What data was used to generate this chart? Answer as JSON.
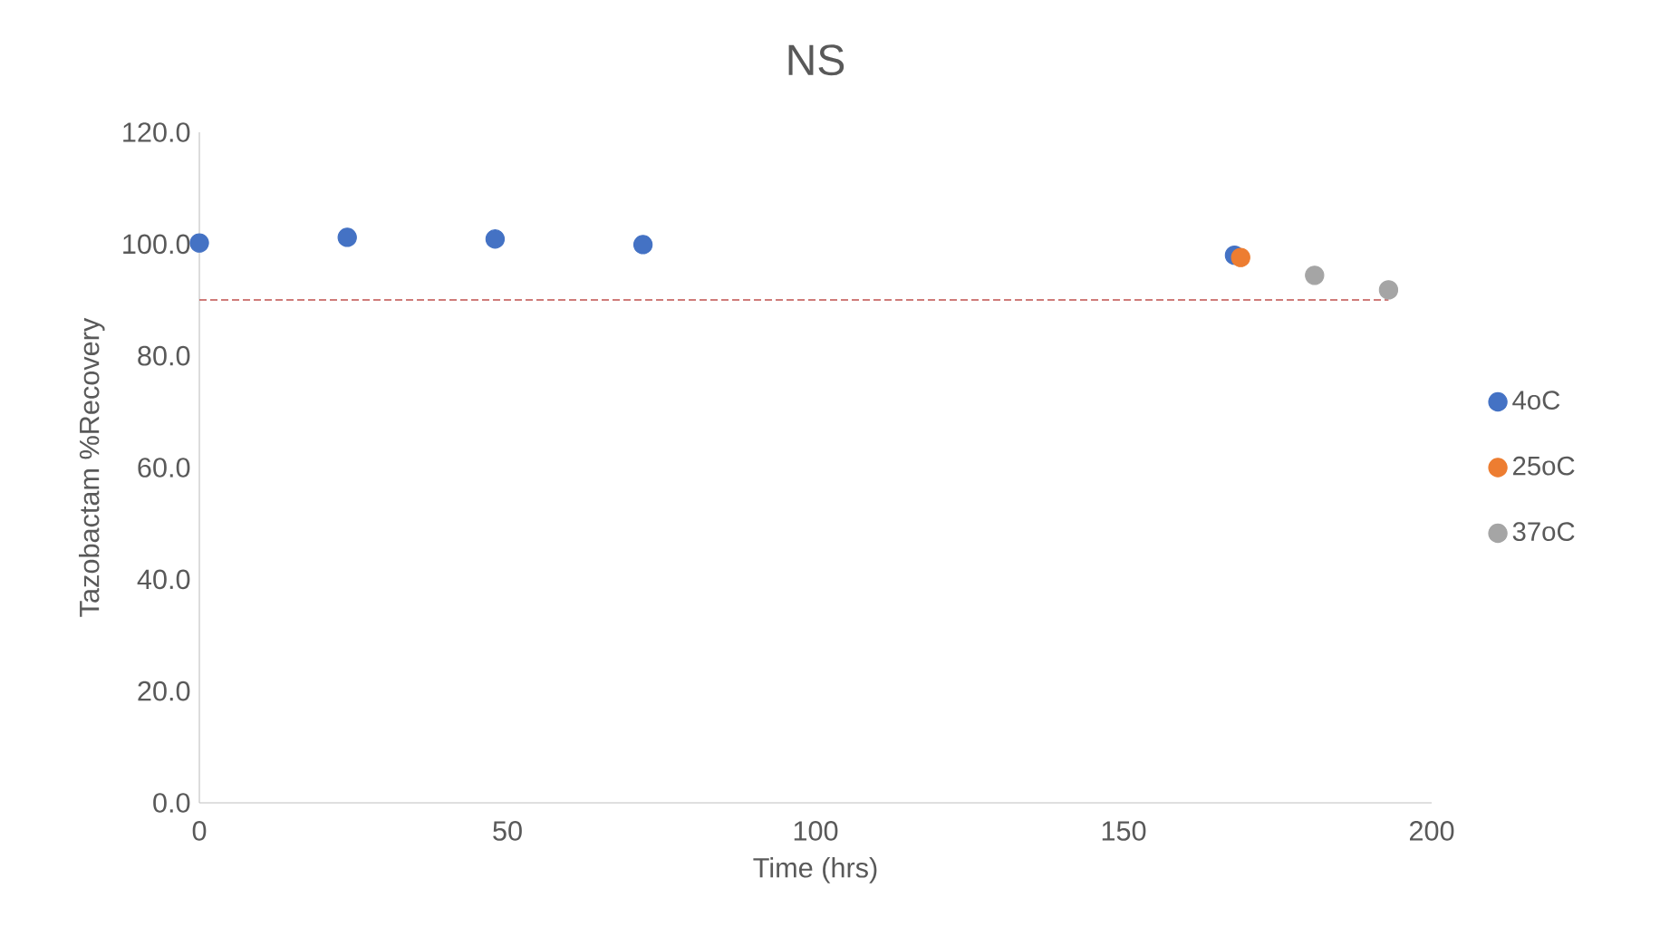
{
  "chart_data": {
    "type": "scatter",
    "title": "NS",
    "xlabel": "Time (hrs)",
    "ylabel": "Tazobactam %Recovery",
    "series": [
      {
        "name": "4oC",
        "color": "#4472c4",
        "x": [
          0,
          24,
          48,
          72,
          168
        ],
        "values": [
          100.2,
          101.2,
          100.9,
          99.9,
          98.0
        ]
      },
      {
        "name": "25oC",
        "color": "#ed7d31",
        "x": [
          169
        ],
        "values": [
          97.6
        ]
      },
      {
        "name": "37oC",
        "color": "#a5a5a5",
        "x": [
          181,
          193
        ],
        "values": [
          94.4,
          91.8
        ]
      }
    ],
    "xlim": [
      0,
      200
    ],
    "xticks": [
      0,
      50,
      100,
      150,
      200
    ],
    "ylim": [
      0,
      120
    ],
    "yticks": [
      {
        "value": 0,
        "label": "0.0"
      },
      {
        "value": 20,
        "label": "20.0"
      },
      {
        "value": 40,
        "label": "40.0"
      },
      {
        "value": 60,
        "label": "60.0"
      },
      {
        "value": 80,
        "label": "80.0"
      },
      {
        "value": 100,
        "label": "100.0"
      },
      {
        "value": 120,
        "label": "120.0"
      }
    ],
    "ref_lines": [
      {
        "axis": "y",
        "value": 90,
        "color": "#c0504d",
        "line_style": "dashed"
      }
    ],
    "grid": false,
    "legend": "right"
  }
}
